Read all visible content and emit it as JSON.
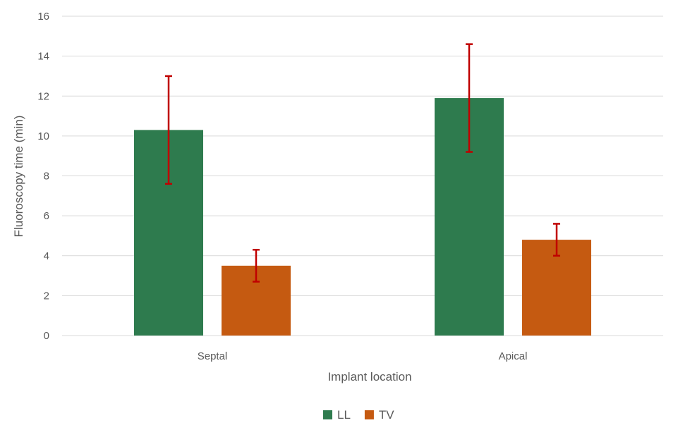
{
  "chart_data": {
    "type": "bar",
    "title": "",
    "xlabel": "Implant location",
    "ylabel": "Fluoroscopy time (min)",
    "categories": [
      "Septal",
      "Apical"
    ],
    "ylim": [
      0,
      16
    ],
    "yticks": [
      0,
      2,
      4,
      6,
      8,
      10,
      12,
      14,
      16
    ],
    "yticks_text": [
      "0",
      "2",
      "4",
      "6",
      "8",
      "10",
      "12",
      "14",
      "16"
    ],
    "grid": true,
    "legend_position": "bottom",
    "series": [
      {
        "name": "LL",
        "color": "#2e7b4e",
        "values": [
          10.3,
          11.9
        ],
        "error": [
          2.7,
          2.7
        ]
      },
      {
        "name": "TV",
        "color": "#c55a11",
        "values": [
          3.5,
          4.8
        ],
        "error": [
          0.8,
          0.8
        ]
      }
    ],
    "error_bar_color": "#c00000"
  }
}
